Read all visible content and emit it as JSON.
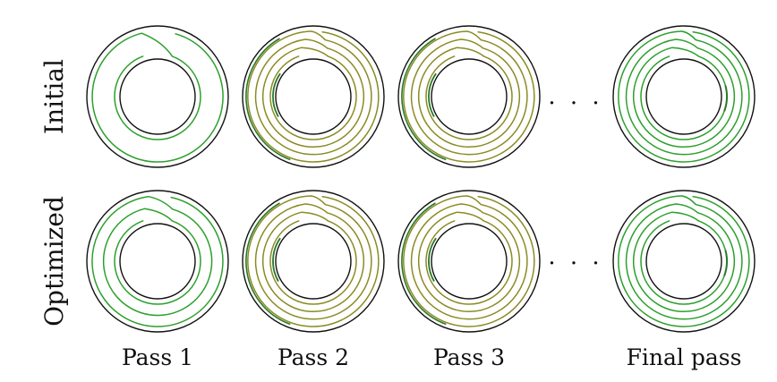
{
  "rows": [
    {
      "label": "Initial"
    },
    {
      "label": "Optimized"
    }
  ],
  "columns": [
    {
      "label": "Pass 1"
    },
    {
      "label": "Pass 2"
    },
    {
      "label": "Pass 3"
    },
    {
      "label": ""
    },
    {
      "label": "Final pass"
    }
  ],
  "ellipsis": "· · ·",
  "colors": {
    "outline": "#111111",
    "path_green": "#2ca02c",
    "path_olive": "#8b8b23",
    "path_dark_green": "#2a7a2a"
  },
  "panels": [
    {
      "row": 0,
      "col": 0,
      "style": "green",
      "loops": 2
    },
    {
      "row": 0,
      "col": 1,
      "style": "olive",
      "loops": 4
    },
    {
      "row": 0,
      "col": 2,
      "style": "olive",
      "loops": 4
    },
    {
      "row": 0,
      "col": 4,
      "style": "green",
      "loops": 4
    },
    {
      "row": 1,
      "col": 0,
      "style": "green",
      "loops": 3
    },
    {
      "row": 1,
      "col": 1,
      "style": "olive",
      "loops": 4
    },
    {
      "row": 1,
      "col": 2,
      "style": "olive",
      "loops": 4
    },
    {
      "row": 1,
      "col": 4,
      "style": "green",
      "loops": 4
    }
  ]
}
